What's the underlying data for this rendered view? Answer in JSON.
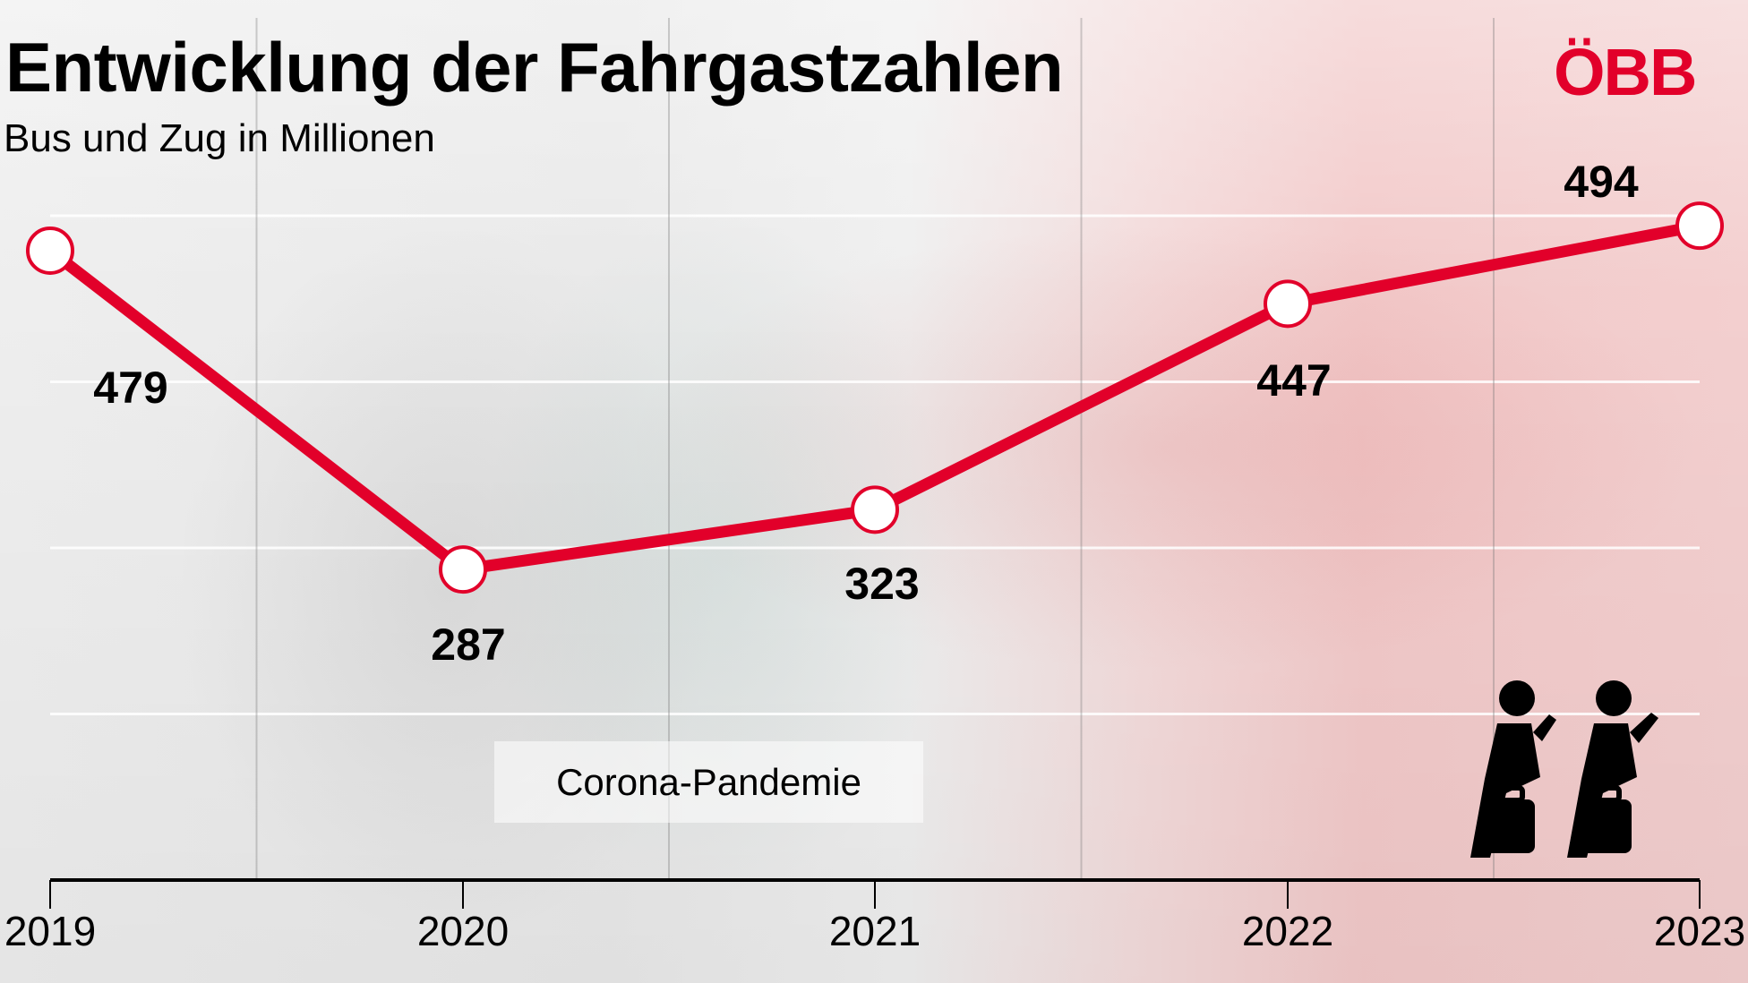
{
  "title": "Entwicklung der Fahrgastzahlen",
  "subtitle": "Bus und Zug in Millionen",
  "logo": "ÖBB",
  "annotation": "Corona-Pandemie",
  "colors": {
    "line": "#e2002a",
    "marker_fill": "#ffffff",
    "logo": "#e2002a"
  },
  "icon": "seated-passengers-with-luggage-icon",
  "chart_data": {
    "type": "line",
    "title": "Entwicklung der Fahrgastzahlen",
    "subtitle": "Bus und Zug in Millionen",
    "categories": [
      "2019",
      "2020",
      "2021",
      "2022",
      "2023"
    ],
    "values": [
      479,
      287,
      323,
      447,
      494
    ],
    "data_labels": [
      "479",
      "287",
      "323",
      "447",
      "494"
    ],
    "ylim": [
      100,
      520
    ],
    "grid": {
      "horizontal": [
        200,
        300,
        400,
        500
      ],
      "vertical": "between categories"
    },
    "legend": "none",
    "annotations": [
      {
        "text": "Corona-Pandemie",
        "span": [
          "2020",
          "2021"
        ]
      }
    ]
  }
}
